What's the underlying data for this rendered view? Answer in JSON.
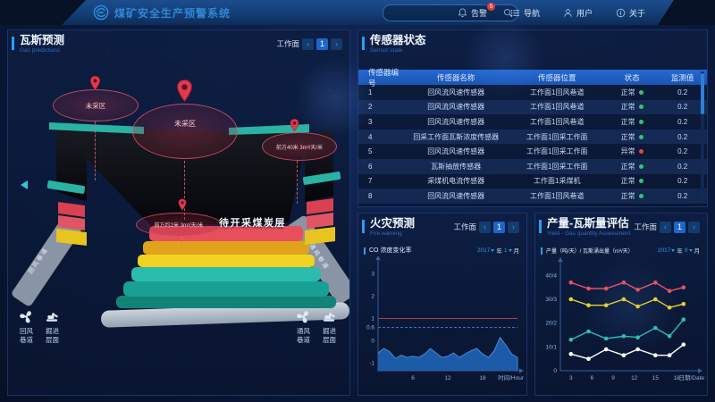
{
  "header": {
    "title": "煤矿安全生产预警系统",
    "nav": [
      {
        "key": "alerts",
        "icon": "bell-icon",
        "label": "告警",
        "badge": "5"
      },
      {
        "key": "navigation",
        "icon": "menu-icon",
        "label": "导航"
      },
      {
        "key": "user",
        "icon": "user-icon",
        "label": "用户"
      },
      {
        "key": "about",
        "icon": "info-icon",
        "label": "关于"
      }
    ]
  },
  "common": {
    "workface_label": "工作面",
    "pager": {
      "prev": "‹",
      "page": "1",
      "next": "›"
    }
  },
  "gas_panel": {
    "title": "瓦斯预测",
    "subtitle": "Gas predictions",
    "scene": {
      "pin_a_label": "未采区",
      "pin_b_label": "未采区",
      "right_annotation": "前方40米 3m³/天/米",
      "bottom_annotation": "前方约2米 3m³/天/米",
      "coal_label": "待开采煤炭层",
      "left_slope_label": "回风巷道",
      "right_slope_label": "通风巷道",
      "legend_left": [
        {
          "icon": "fan-icon",
          "line1": "回风",
          "line2": "巷道"
        },
        {
          "icon": "excavator-icon",
          "line1": "掘进",
          "line2": "层面"
        }
      ],
      "legend_right": [
        {
          "icon": "fan-icon",
          "line1": "通风",
          "line2": "巷道"
        },
        {
          "icon": "excavator-icon",
          "line1": "掘进",
          "line2": "层面"
        }
      ]
    }
  },
  "sensor_panel": {
    "title": "传感器状态",
    "subtitle": "Sensor state",
    "columns": [
      "传感器编号",
      "传感器名称",
      "传感器位置",
      "状态",
      "监测值"
    ],
    "rows": [
      {
        "id": "1",
        "name": "回风流风速传感器",
        "location": "工作面1回风巷道",
        "status": "正常",
        "status_type": "ok",
        "value": "0.2"
      },
      {
        "id": "2",
        "name": "回风流风速传感器",
        "location": "工作面1回风巷道",
        "status": "正常",
        "status_type": "ok",
        "value": "0.2"
      },
      {
        "id": "3",
        "name": "回风流风速传感器",
        "location": "工作面1回风巷道",
        "status": "正常",
        "status_type": "ok",
        "value": "0.2"
      },
      {
        "id": "4",
        "name": "回采工作面瓦斯浓度传感器",
        "location": "工作面1回采工作面",
        "status": "正常",
        "status_type": "ok",
        "value": "0.2"
      },
      {
        "id": "5",
        "name": "回风流风速传感器",
        "location": "工作面1回采工作面",
        "status": "异常",
        "status_type": "alarm",
        "value": "0.2"
      },
      {
        "id": "6",
        "name": "瓦斯抽放传感器",
        "location": "工作面1回采工作面",
        "status": "正常",
        "status_type": "ok",
        "value": "0.2"
      },
      {
        "id": "7",
        "name": "采煤机电流传感器",
        "location": "工作面1采煤机",
        "status": "正常",
        "status_type": "ok",
        "value": "0.2"
      },
      {
        "id": "8",
        "name": "回风流风速传感器",
        "location": "工作面1回风巷道",
        "status": "正常",
        "status_type": "ok",
        "value": "0.2"
      }
    ]
  },
  "fire_panel": {
    "title": "火灾预测",
    "subtitle": "Fire warning",
    "chart_label": "CO 浓度变化率",
    "date": {
      "year": "2017",
      "year_unit": "年",
      "month": "1",
      "month_unit": "月"
    }
  },
  "yield_panel": {
    "title": "产量-瓦斯量评估",
    "subtitle": "Yield - Gas quantity Assessment",
    "chart_label": "产量（吨/天）/ 瓦斯涌出量（m³/天）",
    "date": {
      "year": "2017",
      "year_unit": "年",
      "month": "9",
      "month_unit": "月"
    }
  },
  "chart_data": [
    {
      "name": "co-change-rate",
      "type": "area",
      "title": "CO 浓度变化率",
      "x_start": 0,
      "x_step": 1,
      "values": [
        -0.55,
        -0.35,
        -0.5,
        -0.8,
        -0.65,
        -0.75,
        -0.7,
        -0.75,
        -0.6,
        -0.35,
        -0.55,
        -0.75,
        -0.7,
        -0.55,
        -0.75,
        -0.6,
        -0.45,
        -0.35,
        -0.6,
        -0.75,
        -0.45,
        0.15,
        -0.2,
        -0.6,
        -0.75
      ],
      "xlim": [
        0,
        24
      ],
      "ylim": [
        -1.35,
        3.55
      ],
      "yticks": [
        3,
        2,
        1,
        0.6,
        0,
        -1
      ],
      "xticks": [
        6,
        12,
        18
      ],
      "xlabel": "时间/Hour",
      "threshold_solid": {
        "value": 1,
        "color": "#b23a4a"
      },
      "threshold_dashed": {
        "value": 0.6,
        "color": "#3f6fb5"
      },
      "area_color": "#1d5fae",
      "line_color": "#4b93e0"
    },
    {
      "name": "yield-vs-gas",
      "type": "line",
      "title": "产量（吨/天）/ 瓦斯涌出量（m³/天）",
      "x": [
        3,
        5.5,
        8,
        10.5,
        12.5,
        15,
        17,
        19
      ],
      "series": [
        {
          "name": "red",
          "color": "#e8505e",
          "values": [
            37,
            34.5,
            34.5,
            37,
            34,
            37,
            33.5,
            35
          ]
        },
        {
          "name": "yellow",
          "color": "#ecd227",
          "values": [
            30,
            27.5,
            27.5,
            30,
            27,
            30,
            26.5,
            28
          ]
        },
        {
          "name": "teal",
          "color": "#2fbfae",
          "values": [
            13,
            16.5,
            13.5,
            14.5,
            14,
            18,
            14.5,
            21.5
          ]
        },
        {
          "name": "white",
          "color": "#ffffff",
          "values": [
            7,
            5,
            9,
            6.5,
            9,
            6.5,
            6.5,
            11
          ]
        }
      ],
      "xlim": [
        1.5,
        20.8
      ],
      "ylim": [
        0,
        45
      ],
      "ytick_labels": [
        "40/4",
        "30/3",
        "20/2",
        "10/1",
        "0"
      ],
      "ytick_values": [
        40,
        30,
        20,
        10,
        0
      ],
      "xticks": [
        3,
        6,
        9,
        12,
        15,
        18
      ],
      "xlabel": "日期/Date"
    }
  ]
}
